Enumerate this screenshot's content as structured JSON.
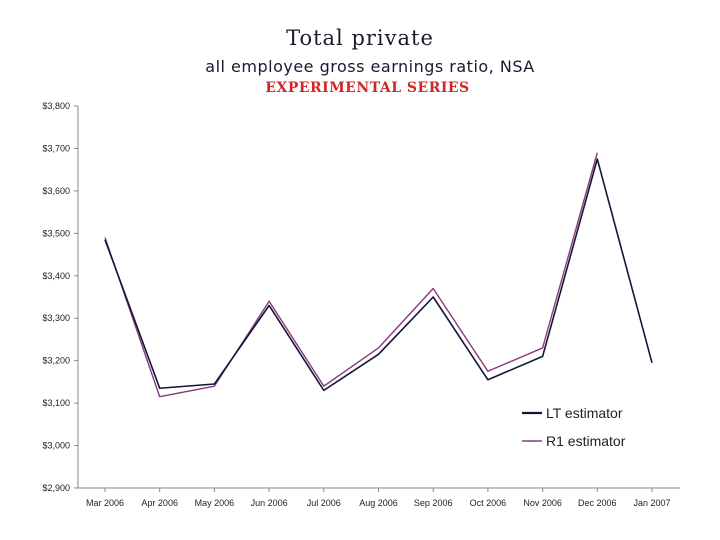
{
  "chart_data": {
    "type": "line",
    "title": "Total private",
    "subtitle": "all employee gross earnings ratio, NSA",
    "note": "EXPERIMENTAL SERIES",
    "xlabel": "",
    "ylabel": "",
    "categories": [
      "Mar 2006",
      "Apr 2006",
      "May 2006",
      "Jun 2006",
      "Jul 2006",
      "Aug 2006",
      "Sep 2006",
      "Oct 2006",
      "Nov 2006",
      "Dec 2006",
      "Jan 2007"
    ],
    "yticks": [
      "$2,900",
      "$3,000",
      "$3,100",
      "$3,200",
      "$3,300",
      "$3,400",
      "$3,500",
      "$3,600",
      "$3,700",
      "$3,800"
    ],
    "ylim": [
      2900,
      3800
    ],
    "grid": false,
    "legend_position": "bottom-right",
    "series": [
      {
        "name": "LT estimator",
        "color": "#14143c",
        "values": [
          3485,
          3135,
          3145,
          3330,
          3130,
          3215,
          3350,
          3155,
          3210,
          3675,
          3195
        ]
      },
      {
        "name": "R1 estimator",
        "color": "#8a3a78",
        "values": [
          3490,
          3115,
          3140,
          3340,
          3140,
          3230,
          3370,
          3175,
          3230,
          3690,
          null
        ]
      }
    ]
  }
}
